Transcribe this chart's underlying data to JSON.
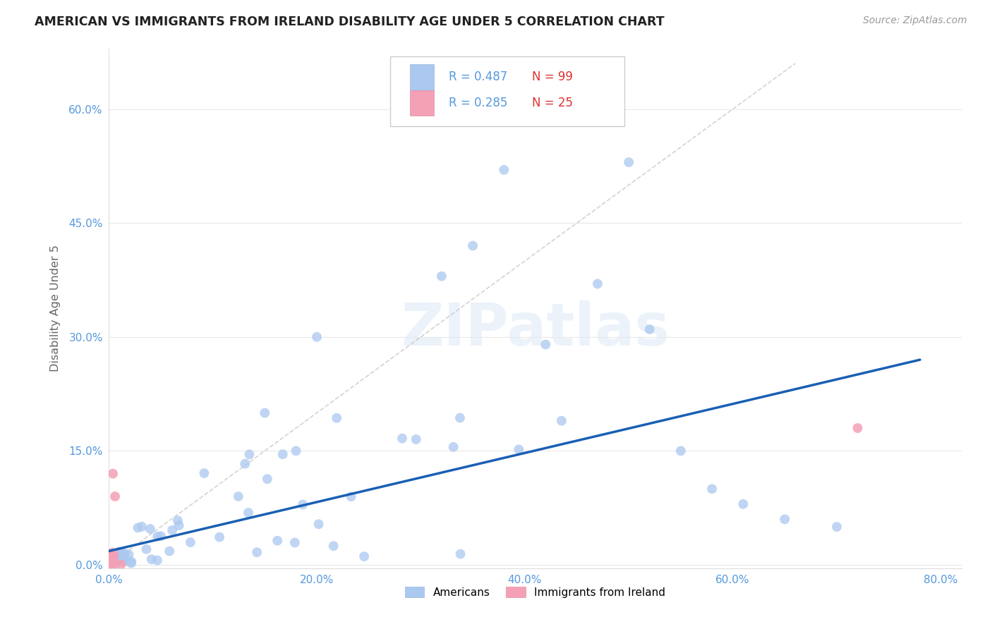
{
  "title": "AMERICAN VS IMMIGRANTS FROM IRELAND DISABILITY AGE UNDER 5 CORRELATION CHART",
  "source": "Source: ZipAtlas.com",
  "ylabel": "Disability Age Under 5",
  "xlim": [
    0.0,
    0.82
  ],
  "ylim": [
    -0.005,
    0.68
  ],
  "xticks": [
    0.0,
    0.2,
    0.4,
    0.6,
    0.8
  ],
  "ytick_positions": [
    0.0,
    0.15,
    0.3,
    0.45,
    0.6
  ],
  "ytick_labels": [
    "0.0%",
    "15.0%",
    "30.0%",
    "45.0%",
    "60.0%"
  ],
  "xtick_labels": [
    "0.0%",
    "20.0%",
    "40.0%",
    "60.0%",
    "80.0%"
  ],
  "legend_r_american": "R = 0.487",
  "legend_n_american": "N = 99",
  "legend_r_ireland": "R = 0.285",
  "legend_n_ireland": "N = 25",
  "american_color": "#aac8f0",
  "ireland_color": "#f4a0b5",
  "trendline_american_color": "#1a5fb4",
  "diagonal_color": "#c8c8c8",
  "watermark": "ZIPatlas",
  "background_color": "#ffffff",
  "grid_color": "#e8e8e8",
  "tick_color": "#5599dd",
  "label_color": "#666666",
  "title_color": "#222222",
  "source_color": "#999999",
  "legend_border_color": "#cccccc",
  "trendline_start_x": 0.0,
  "trendline_start_y": 0.018,
  "trendline_end_x": 0.78,
  "trendline_end_y": 0.27
}
